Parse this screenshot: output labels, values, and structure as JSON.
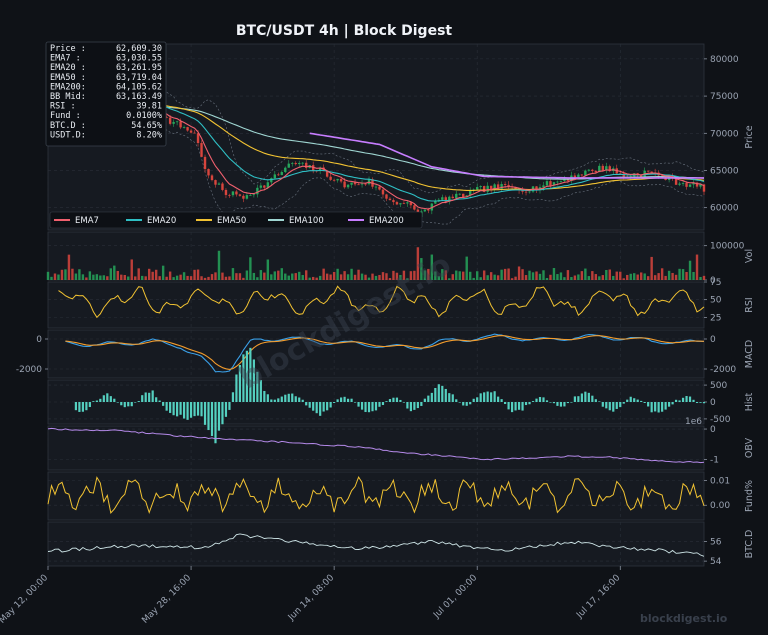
{
  "title": "BTC/USDT  4h  |  Block Digest",
  "watermark_center": "blockdigest.io",
  "watermark_corner": "blockdigest.io",
  "info_box": [
    {
      "label": "Price :",
      "value": "62,609.30"
    },
    {
      "label": "EMA7  :",
      "value": "63,030.55"
    },
    {
      "label": "EMA20 :",
      "value": "63,261.95"
    },
    {
      "label": "EMA50 :",
      "value": "63,719.04"
    },
    {
      "label": "EMA200:",
      "value": "64,105.62"
    },
    {
      "label": "BB Mid:",
      "value": "63,163.49"
    },
    {
      "label": "RSI   :",
      "value": "39.81"
    },
    {
      "label": "Fund  :",
      "value": "0.0100%"
    },
    {
      "label": "BTC.D :",
      "value": "54.65%"
    },
    {
      "label": "USDT.D:",
      "value": "8.20%"
    }
  ],
  "colors": {
    "background": "#0f1217",
    "panel": "#161a21",
    "grid": "#2a2f38",
    "up": "#26a65b",
    "down": "#d8453d",
    "ema7": "#f0606e",
    "ema20": "#2fbfc4",
    "ema50": "#f1c232",
    "ema100": "#9fd6d2",
    "ema200": "#c77dff",
    "rsi": "#f1c232",
    "macd": "#3aa0e8",
    "signal": "#f39c2c",
    "hist": "#55d0c0",
    "obv": "#b58aea",
    "funding": "#f1c232",
    "btcd": "#cfe6e8"
  },
  "chart_data": {
    "type": "line",
    "x_ticks": [
      "May 12, 00:00",
      "May 28, 16:00",
      "Jun 14, 08:00",
      "Jul 01, 00:00",
      "Jul 17, 16:00"
    ],
    "legend": [
      "EMA7",
      "EMA20",
      "EMA50",
      "EMA100",
      "EMA200"
    ],
    "panels": [
      {
        "id": "price",
        "ylabel": "Price",
        "ylim": [
          57000,
          82000
        ],
        "ticks": [
          "80000",
          "75000",
          "70000",
          "65000",
          "60000"
        ],
        "keypoints": [
          [
            0,
            73200
          ],
          [
            18,
            75500
          ],
          [
            24,
            74800
          ],
          [
            31,
            72500
          ],
          [
            38,
            71000
          ],
          [
            42,
            70000
          ],
          [
            46,
            64000
          ],
          [
            51,
            62000
          ],
          [
            56,
            61500
          ],
          [
            62,
            63000
          ],
          [
            70,
            66000
          ],
          [
            78,
            65000
          ],
          [
            85,
            63000
          ],
          [
            92,
            63500
          ],
          [
            98,
            61000
          ],
          [
            103,
            60500
          ],
          [
            106,
            59000
          ],
          [
            112,
            61000
          ],
          [
            118,
            61500
          ],
          [
            124,
            62500
          ],
          [
            130,
            62800
          ],
          [
            138,
            62500
          ],
          [
            146,
            63500
          ],
          [
            152,
            64500
          ],
          [
            156,
            65000
          ],
          [
            160,
            65500
          ],
          [
            165,
            64200
          ],
          [
            172,
            64800
          ],
          [
            180,
            63500
          ],
          [
            186,
            62900
          ],
          [
            188,
            62600
          ]
        ],
        "ema200_keypoints": [
          [
            75,
            70000
          ],
          [
            95,
            68500
          ],
          [
            110,
            65500
          ],
          [
            125,
            64200
          ],
          [
            150,
            64000
          ],
          [
            188,
            64000
          ]
        ]
      },
      {
        "id": "vol",
        "ylabel": "Vol",
        "ylim": [
          0,
          140000
        ],
        "ticks": [
          "100000",
          "0"
        ]
      },
      {
        "id": "rsi",
        "ylabel": "RSI",
        "ylim": [
          10,
          75
        ],
        "ticks": [
          "75",
          "50",
          "25"
        ]
      },
      {
        "id": "macd",
        "ylabel": "MACD",
        "ylim": [
          -2600,
          600
        ],
        "ticks": [
          "0",
          "-2000"
        ],
        "keypoints": [
          [
            0,
            -200
          ],
          [
            15,
            -400
          ],
          [
            30,
            -150
          ],
          [
            38,
            -500
          ],
          [
            44,
            -1300
          ],
          [
            48,
            -2200
          ],
          [
            52,
            -2000
          ],
          [
            58,
            -200
          ],
          [
            68,
            100
          ],
          [
            78,
            -200
          ],
          [
            88,
            -300
          ],
          [
            98,
            -500
          ],
          [
            105,
            -600
          ],
          [
            112,
            -200
          ],
          [
            120,
            0
          ],
          [
            130,
            200
          ],
          [
            140,
            -100
          ],
          [
            150,
            100
          ],
          [
            160,
            150
          ],
          [
            172,
            -100
          ],
          [
            182,
            -300
          ],
          [
            188,
            -100
          ]
        ]
      },
      {
        "id": "hist",
        "ylabel": "Hist",
        "ylim": [
          -650,
          650
        ],
        "ticks": [
          "500",
          "0",
          "-500"
        ]
      },
      {
        "id": "obv",
        "ylabel": "OBV",
        "ylim": [
          -1.35,
          0.1
        ],
        "ticks": [
          "0",
          "-1"
        ],
        "exponent": "1e6",
        "keypoints": [
          [
            0,
            0
          ],
          [
            20,
            -0.05
          ],
          [
            40,
            -0.25
          ],
          [
            55,
            -0.35
          ],
          [
            70,
            -0.45
          ],
          [
            90,
            -0.6
          ],
          [
            100,
            -0.75
          ],
          [
            110,
            -0.85
          ],
          [
            125,
            -1.0
          ],
          [
            140,
            -0.95
          ],
          [
            150,
            -0.9
          ],
          [
            160,
            -0.92
          ],
          [
            175,
            -1.05
          ],
          [
            188,
            -1.1
          ]
        ]
      },
      {
        "id": "fund",
        "ylabel": "Fund%",
        "ylim": [
          -0.006,
          0.0135
        ],
        "ticks": [
          "0.01",
          "0.00"
        ]
      },
      {
        "id": "btcd",
        "ylabel": "BTC.D",
        "ylim": [
          53.5,
          58
        ],
        "ticks": [
          "56",
          "54"
        ],
        "keypoints": [
          [
            0,
            55
          ],
          [
            25,
            55.6
          ],
          [
            45,
            55.4
          ],
          [
            55,
            56.7
          ],
          [
            65,
            56.2
          ],
          [
            75,
            55.8
          ],
          [
            90,
            55.3
          ],
          [
            100,
            55.6
          ],
          [
            110,
            56.0
          ],
          [
            120,
            55.5
          ],
          [
            130,
            55.0
          ],
          [
            140,
            55.5
          ],
          [
            150,
            56.0
          ],
          [
            160,
            55.5
          ],
          [
            175,
            55.1
          ],
          [
            188,
            54.65
          ]
        ]
      }
    ]
  }
}
